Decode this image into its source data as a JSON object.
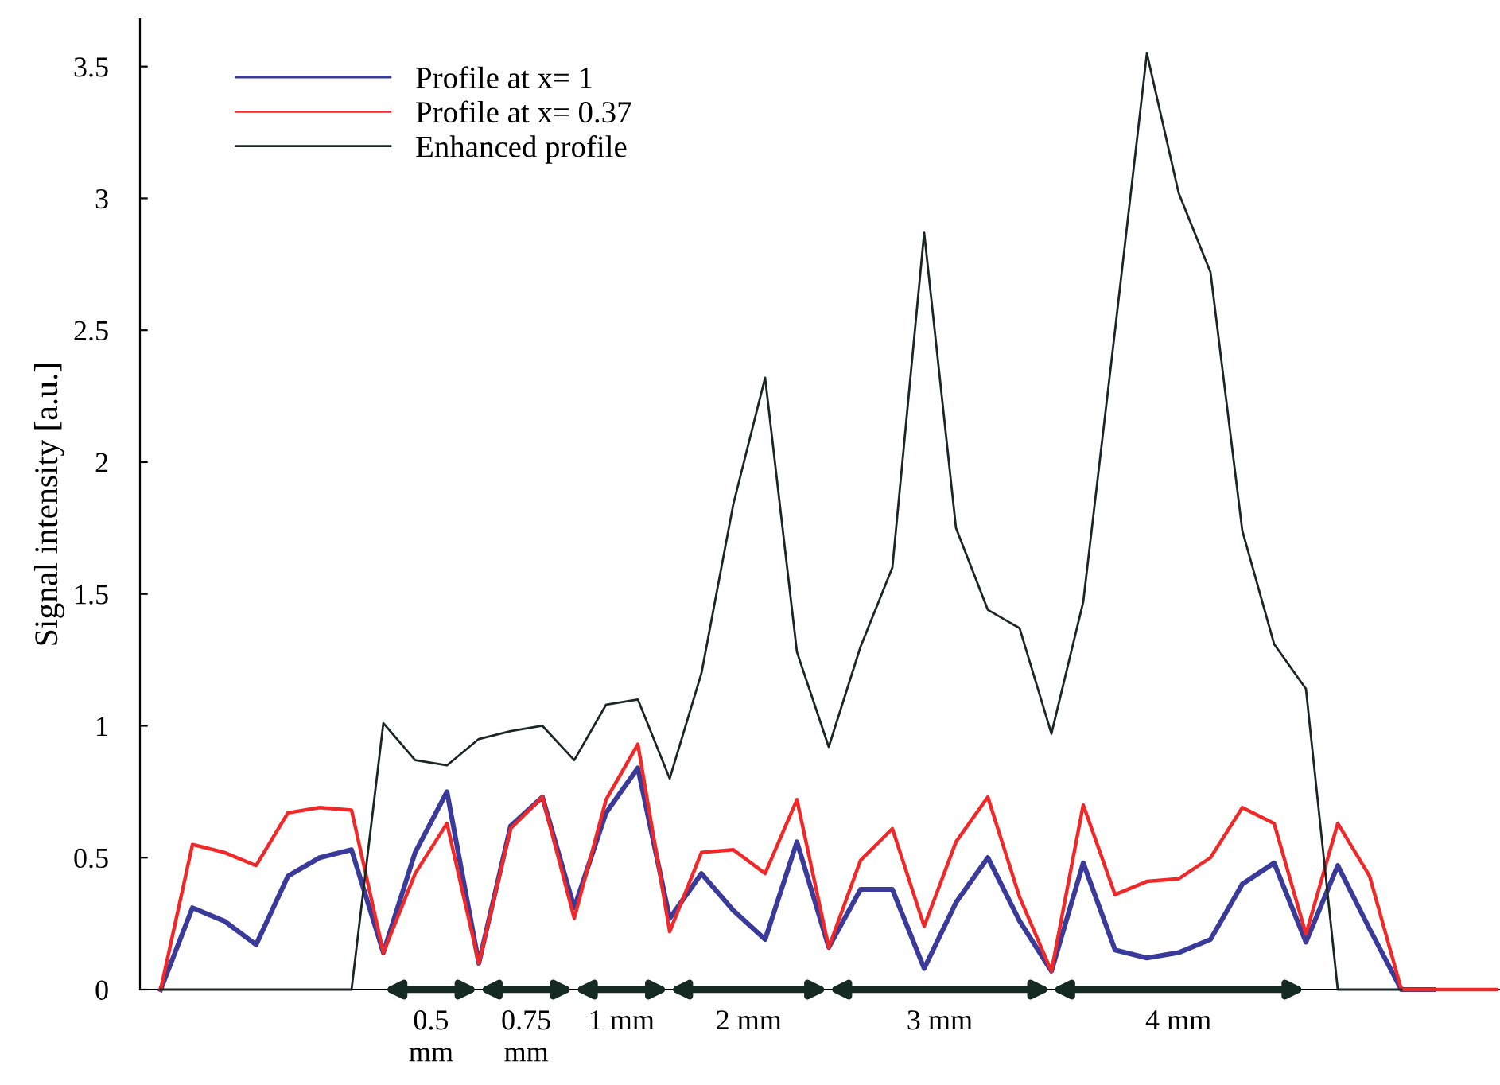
{
  "chart_data": {
    "type": "line",
    "ylabel": "Signal intensity [a.u.]",
    "categories": [
      null,
      null,
      null,
      null,
      null,
      null,
      null,
      null,
      null,
      null,
      null,
      null,
      null,
      null,
      null,
      null,
      null,
      null,
      null,
      null,
      null,
      null,
      null,
      null,
      null,
      null,
      null,
      null,
      null,
      null,
      null,
      null,
      null,
      null,
      null,
      null,
      null,
      null,
      null,
      null,
      null,
      null,
      null
    ],
    "tick_labels": "y",
    "ylim": [
      0,
      3.68
    ],
    "yticks": [
      0,
      0.5,
      1,
      1.5,
      2,
      2.5,
      3,
      3.5
    ],
    "series": [
      {
        "name": "Profile at x= 1",
        "color": "#3a3a9a",
        "values": [
          0,
          0.31,
          0.26,
          0.17,
          0.43,
          0.5,
          0.53,
          0.14,
          0.52,
          0.75,
          0.1,
          0.62,
          0.73,
          0.31,
          0.67,
          0.84,
          0.27,
          0.44,
          0.3,
          0.19,
          0.56,
          0.16,
          0.38,
          0.38,
          0.08,
          0.33,
          0.5,
          0.26,
          0.07,
          0.48,
          0.15,
          0.12,
          0.14,
          0.19,
          0.4,
          0.48,
          0.18,
          0.47,
          0.23,
          0,
          0,
          null,
          null
        ]
      },
      {
        "name": "Profile at x= 0.37",
        "color": "#f02828",
        "values": [
          0,
          0.55,
          0.52,
          0.47,
          0.67,
          0.69,
          0.68,
          0.14,
          0.44,
          0.63,
          0.1,
          0.61,
          0.73,
          0.27,
          0.72,
          0.93,
          0.22,
          0.52,
          0.53,
          0.44,
          0.72,
          0.16,
          0.49,
          0.61,
          0.24,
          0.56,
          0.73,
          0.35,
          0.07,
          0.7,
          0.36,
          0.41,
          0.42,
          0.5,
          0.69,
          0.63,
          0.21,
          0.63,
          0.43,
          0,
          0,
          0,
          0
        ]
      },
      {
        "name": "Enhanced profile",
        "color": "#1a2626",
        "values": [
          0,
          0,
          0,
          0,
          0,
          0,
          0,
          1.01,
          0.87,
          0.85,
          0.95,
          0.98,
          1.0,
          0.87,
          1.08,
          1.1,
          0.8,
          1.2,
          1.84,
          2.32,
          1.28,
          0.92,
          1.3,
          1.6,
          2.87,
          1.75,
          1.44,
          1.37,
          0.97,
          1.47,
          2.5,
          3.55,
          3.02,
          2.72,
          1.74,
          1.31,
          1.14,
          0,
          0,
          0,
          null,
          null,
          null
        ]
      }
    ],
    "legend": "top left",
    "grid": false,
    "annotations": [
      "0.5\nmm",
      "0.75\nmm",
      "1 mm",
      "2 mm",
      "3 mm",
      "4 mm"
    ]
  }
}
